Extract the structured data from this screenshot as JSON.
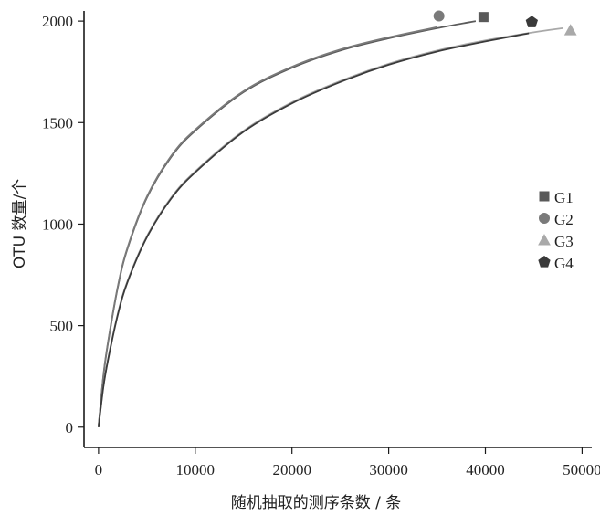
{
  "chart_data": {
    "type": "line",
    "title": "",
    "xlabel": "随机抽取的测序条数 / 条",
    "ylabel": "OTU 数量/个",
    "xlim": [
      -1500,
      51000
    ],
    "ylim": [
      -100,
      2050
    ],
    "x_ticks": [
      0,
      10000,
      20000,
      30000,
      40000,
      50000
    ],
    "x_tick_labels": [
      "0",
      "10000",
      "20000",
      "30000",
      "40000",
      "50000"
    ],
    "y_ticks": [
      0,
      500,
      1000,
      1500,
      2000
    ],
    "y_tick_labels": [
      "0",
      "500",
      "1000",
      "1500",
      "2000"
    ],
    "legend_position": "right",
    "series": [
      {
        "name": "G1",
        "marker": "square",
        "color": "#5a5a5a",
        "x": [
          0,
          500,
          1000,
          2000,
          3000,
          5000,
          7500,
          10000,
          15000,
          20000,
          25000,
          30000,
          35000,
          39000
        ],
        "y": [
          0,
          250,
          420,
          690,
          880,
          1130,
          1330,
          1460,
          1650,
          1770,
          1855,
          1915,
          1965,
          2000
        ],
        "end_marker": {
          "x": 39800,
          "y": 2020
        }
      },
      {
        "name": "G2",
        "marker": "circle",
        "color": "#7a7a7a",
        "x": [
          0,
          500,
          1000,
          2000,
          3000,
          5000,
          7500,
          10000,
          15000,
          20000,
          25000,
          30000,
          35000
        ],
        "y": [
          0,
          255,
          425,
          695,
          885,
          1135,
          1335,
          1465,
          1655,
          1775,
          1860,
          1920,
          1970
        ],
        "end_marker": {
          "x": 35200,
          "y": 2025
        }
      },
      {
        "name": "G3",
        "marker": "triangle",
        "color": "#a9a9a9",
        "x": [
          0,
          500,
          1000,
          2000,
          3000,
          5000,
          7500,
          10000,
          15000,
          20000,
          25000,
          30000,
          35000,
          40000,
          45000,
          48000
        ],
        "y": [
          0,
          200,
          340,
          560,
          720,
          940,
          1130,
          1260,
          1460,
          1600,
          1705,
          1790,
          1855,
          1905,
          1945,
          1965
        ],
        "end_marker": {
          "x": 48800,
          "y": 1955
        }
      },
      {
        "name": "G4",
        "marker": "pentagon",
        "color": "#3a3a3a",
        "x": [
          0,
          500,
          1000,
          2000,
          3000,
          5000,
          7500,
          10000,
          15000,
          20000,
          25000,
          30000,
          35000,
          40000,
          44500
        ],
        "y": [
          0,
          198,
          335,
          555,
          715,
          935,
          1125,
          1255,
          1455,
          1595,
          1700,
          1785,
          1850,
          1900,
          1940
        ],
        "end_marker": {
          "x": 44800,
          "y": 1995
        }
      }
    ]
  }
}
